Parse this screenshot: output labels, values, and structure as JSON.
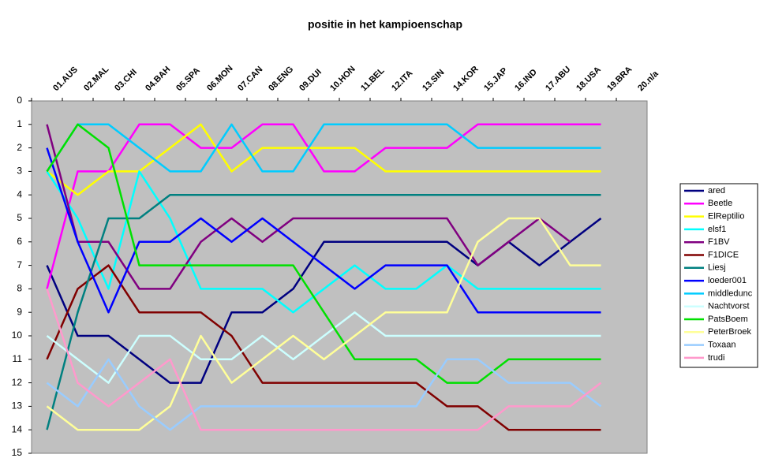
{
  "chart_data": {
    "type": "line",
    "title": "positie in het kampioenschap",
    "categories": [
      "01.AUS",
      "02.MAL",
      "03.CHI",
      "04.BAH",
      "05.SPA",
      "06.MON",
      "07.CAN",
      "08.ENG",
      "09.DUI",
      "10.HON",
      "11.BEL",
      "12.ITA",
      "13.SIN",
      "14.KOR",
      "15.JAP",
      "16.IND",
      "17.ABU",
      "18.USA",
      "19.BRA",
      "20.n/a"
    ],
    "ylim": [
      0,
      15
    ],
    "yticks": [
      0,
      1,
      2,
      3,
      4,
      5,
      6,
      7,
      8,
      9,
      10,
      11,
      12,
      13,
      14,
      15
    ],
    "y_reversed": true,
    "legend": "right",
    "series": [
      {
        "name": "ared",
        "color": "#000080",
        "values": [
          7,
          10,
          10,
          11,
          12,
          12,
          9,
          9,
          8,
          6,
          6,
          6,
          6,
          6,
          7,
          6,
          7,
          6,
          5,
          null
        ]
      },
      {
        "name": "Beetle",
        "color": "#ff00ff",
        "values": [
          8,
          3,
          3,
          1,
          1,
          2,
          2,
          1,
          1,
          3,
          3,
          2,
          2,
          2,
          1,
          1,
          1,
          1,
          1,
          null
        ]
      },
      {
        "name": "ElReptilio",
        "color": "#ffff00",
        "values": [
          3,
          4,
          3,
          3,
          2,
          1,
          3,
          2,
          2,
          2,
          2,
          3,
          3,
          3,
          3,
          3,
          3,
          3,
          3,
          null
        ]
      },
      {
        "name": "elsf1",
        "color": "#00ffff",
        "values": [
          3,
          5,
          8,
          3,
          5,
          8,
          8,
          8,
          9,
          8,
          7,
          8,
          8,
          7,
          8,
          8,
          8,
          8,
          8,
          null
        ]
      },
      {
        "name": "F1BV",
        "color": "#800080",
        "values": [
          1,
          6,
          6,
          8,
          8,
          6,
          5,
          6,
          5,
          5,
          5,
          5,
          5,
          5,
          7,
          6,
          5,
          6,
          null,
          null
        ]
      },
      {
        "name": "F1DICE",
        "color": "#800000",
        "values": [
          11,
          8,
          7,
          9,
          9,
          9,
          10,
          12,
          12,
          12,
          12,
          12,
          12,
          13,
          13,
          14,
          14,
          14,
          14,
          null
        ]
      },
      {
        "name": "Liesj",
        "color": "#008080",
        "values": [
          14,
          9,
          5,
          5,
          4,
          4,
          4,
          4,
          4,
          4,
          4,
          4,
          4,
          4,
          4,
          4,
          4,
          4,
          4,
          null
        ]
      },
      {
        "name": "loeder001",
        "color": "#0000ff",
        "values": [
          2,
          6,
          9,
          6,
          6,
          5,
          6,
          5,
          6,
          7,
          8,
          7,
          7,
          7,
          9,
          9,
          9,
          9,
          9,
          null
        ]
      },
      {
        "name": "middledunc",
        "color": "#00ccff",
        "values": [
          3,
          1,
          1,
          2,
          3,
          3,
          1,
          3,
          3,
          1,
          1,
          1,
          1,
          1,
          2,
          2,
          2,
          2,
          2,
          null
        ]
      },
      {
        "name": "Nachtvorst",
        "color": "#ccffff",
        "values": [
          10,
          11,
          12,
          10,
          10,
          11,
          11,
          10,
          11,
          10,
          9,
          10,
          10,
          10,
          10,
          10,
          10,
          10,
          10,
          null
        ]
      },
      {
        "name": "PatsBoem",
        "color": "#00e000",
        "values": [
          3,
          1,
          2,
          7,
          7,
          7,
          7,
          7,
          7,
          9,
          11,
          11,
          11,
          12,
          12,
          11,
          11,
          11,
          11,
          null
        ]
      },
      {
        "name": "PeterBroek",
        "color": "#ffff99",
        "values": [
          13,
          14,
          14,
          14,
          13,
          10,
          12,
          11,
          10,
          11,
          10,
          9,
          9,
          9,
          6,
          5,
          5,
          7,
          7,
          null
        ]
      },
      {
        "name": "Toxaan",
        "color": "#99ccff",
        "values": [
          12,
          13,
          11,
          13,
          14,
          13,
          13,
          13,
          13,
          13,
          13,
          13,
          13,
          11,
          11,
          12,
          12,
          12,
          13,
          null
        ]
      },
      {
        "name": "trudi",
        "color": "#ff99cc",
        "values": [
          8,
          12,
          13,
          12,
          11,
          14,
          14,
          14,
          14,
          14,
          14,
          14,
          14,
          14,
          14,
          13,
          13,
          13,
          12,
          null
        ]
      }
    ]
  }
}
